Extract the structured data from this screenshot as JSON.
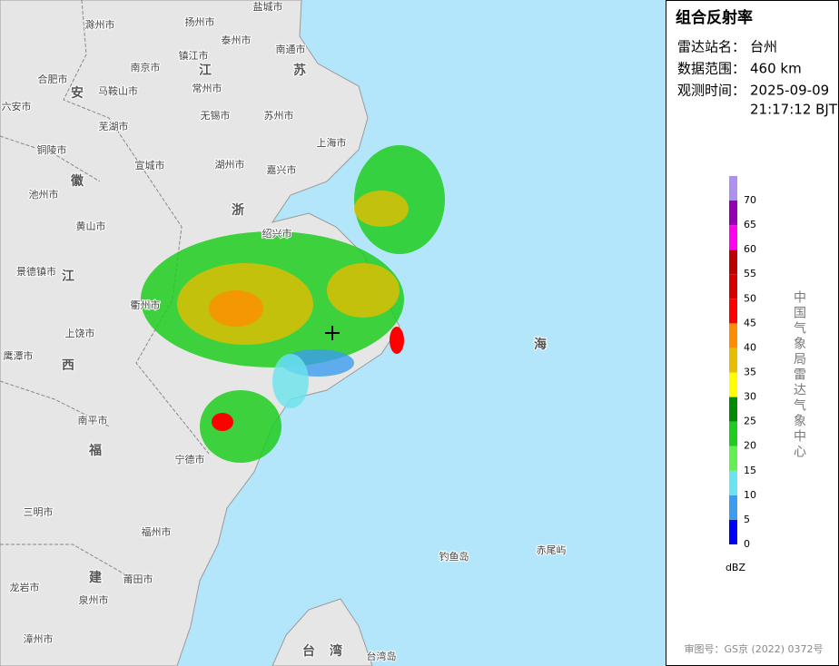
{
  "panel": {
    "title": "组合反射率",
    "rows": [
      {
        "label": "雷达站名：",
        "value": "台州"
      },
      {
        "label": "数据范围：",
        "value": "460 km"
      },
      {
        "label": "观测时间：",
        "value": "2025-09-09",
        "value2": "21:17:12 BJT"
      }
    ],
    "legend": {
      "unit": "dBZ",
      "levels": [
        0,
        5,
        10,
        15,
        20,
        25,
        30,
        35,
        40,
        45,
        50,
        55,
        60,
        65,
        70
      ],
      "colors": [
        "#0000f6",
        "#3c9cf0",
        "#6ae4ee",
        "#62ef54",
        "#1ecd1e",
        "#008c00",
        "#ffff00",
        "#e6bd00",
        "#ff8c00",
        "#ff0000",
        "#d80000",
        "#c00000",
        "#ff00f0",
        "#9600b4",
        "#ad90f0"
      ]
    },
    "source": "中国气象局雷达气象中心",
    "approval": "审图号：GS京 (2022) 0372号"
  },
  "map": {
    "places": [
      "盐城市",
      "扬州市",
      "泰州市",
      "滁州市",
      "南京市",
      "镇江市",
      "南通市",
      "合肥市",
      "马鞍山市",
      "常州市",
      "无锡市",
      "苏州市",
      "芜湖市",
      "上海市",
      "铜陵市",
      "宣城市",
      "湖州市",
      "嘉兴市",
      "池州市",
      "黄山市",
      "景德镇市",
      "衢州市",
      "上饶市",
      "鹰潭市",
      "南平市",
      "宁德市",
      "三明市",
      "福州市",
      "莆田市",
      "龙岩市",
      "泉州市",
      "漳州市",
      "台湾岛",
      "钓鱼岛",
      "赤尾屿",
      "六安市",
      "绍兴市"
    ],
    "regions": [
      "安",
      "徽",
      "江",
      "苏",
      "浙",
      "江",
      "西",
      "福",
      "建",
      "海",
      "台",
      "湾"
    ]
  }
}
